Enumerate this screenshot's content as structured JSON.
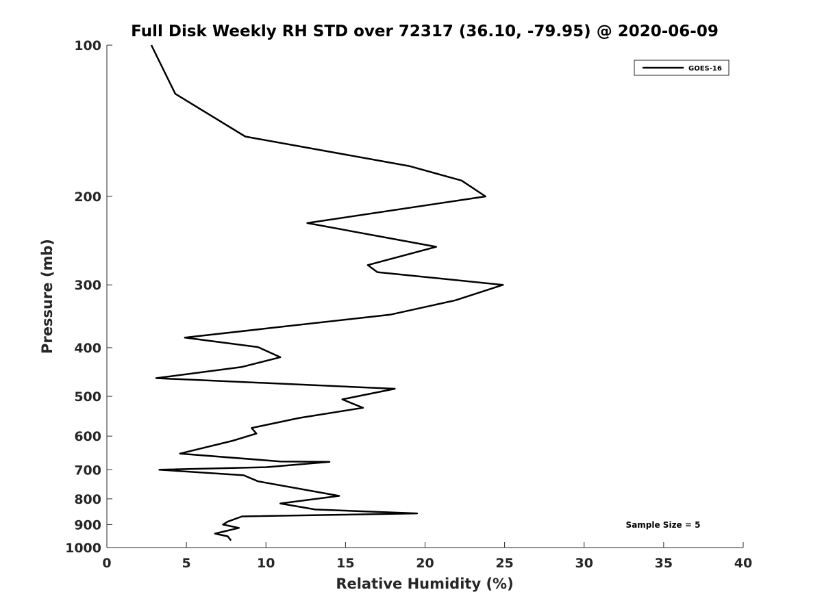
{
  "chart_data": {
    "type": "line",
    "title": "Full Disk Weekly RH STD over 72317 (36.10, -79.95) @ 2020-06-09",
    "xlabel": "Relative Humidity (%)",
    "ylabel": "Pressure (mb)",
    "xlim": [
      0,
      40
    ],
    "ylim": [
      1000,
      100
    ],
    "y_scale": "log",
    "y_reversed": true,
    "x_ticks": [
      0,
      5,
      10,
      15,
      20,
      25,
      30,
      35,
      40
    ],
    "y_ticks": [
      100,
      200,
      300,
      400,
      500,
      600,
      700,
      800,
      900,
      1000
    ],
    "grid": false,
    "legend_position": "top-right",
    "annotation": "Sample Size = 5",
    "series": [
      {
        "name": "GOES-16",
        "color": "#000000",
        "x": [
          2.8,
          4.3,
          8.7,
          19.0,
          22.3,
          23.8,
          12.6,
          20.7,
          16.4,
          17.0,
          24.9,
          21.9,
          17.8,
          4.9,
          9.5,
          10.9,
          8.5,
          3.1,
          18.1,
          14.8,
          16.1,
          12.1,
          9.1,
          9.4,
          7.9,
          4.6,
          10.9,
          14.0,
          10.0,
          3.3,
          8.6,
          9.5,
          14.6,
          10.9,
          13.1,
          19.5,
          8.5,
          7.6,
          7.3,
          8.3,
          6.8,
          7.6,
          7.8
        ],
        "y": [
          100,
          125,
          152,
          174,
          186,
          200,
          226,
          252,
          274,
          283,
          300,
          322,
          344,
          382,
          399,
          418,
          437,
          460,
          483,
          507,
          527,
          552,
          578,
          593,
          613,
          650,
          674,
          675,
          692,
          700,
          718,
          738,
          789,
          817,
          840,
          855,
          867,
          888,
          900,
          914,
          938,
          950,
          968
        ]
      }
    ]
  }
}
